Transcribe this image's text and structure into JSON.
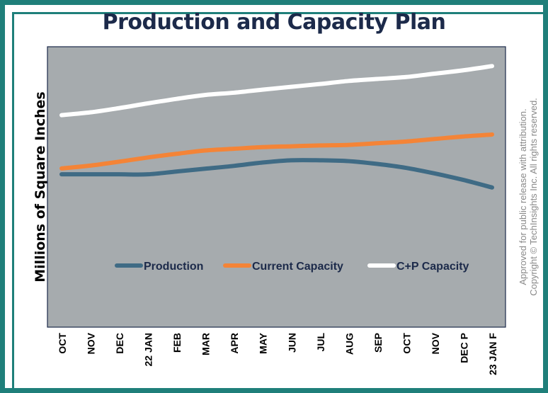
{
  "chart_data": {
    "type": "line",
    "title": "Production and Capacity Plan",
    "ylabel": "Millions of Square Inches",
    "xlabel": "",
    "categories": [
      "OCT",
      "NOV",
      "DEC",
      "22 JAN",
      "FEB",
      "MAR",
      "APR",
      "MAY",
      "JUN",
      "JUL",
      "AUG",
      "SEP",
      "OCT",
      "NOV",
      "DEC P",
      "23 JAN F"
    ],
    "ylim": [
      0,
      100
    ],
    "grid": false,
    "legend": "center",
    "series": [
      {
        "name": "Production",
        "color": "#3f6b85",
        "values": [
          54.5,
          54.5,
          54.5,
          54.5,
          55.5,
          56.5,
          57.5,
          58.7,
          59.5,
          59.5,
          59.2,
          58.2,
          56.8,
          54.8,
          52.5,
          49.8
        ]
      },
      {
        "name": "Current Capacity",
        "color": "#f48437",
        "values": [
          56.6,
          57.6,
          59.0,
          60.5,
          61.8,
          63.0,
          63.6,
          64.2,
          64.5,
          64.8,
          65.0,
          65.6,
          66.2,
          67.1,
          68.0,
          68.7
        ]
      },
      {
        "name": "C+P Capacity",
        "color": "#ffffff",
        "values": [
          75.6,
          76.6,
          78.1,
          79.8,
          81.4,
          82.8,
          83.6,
          84.7,
          85.7,
          86.7,
          87.8,
          88.5,
          89.2,
          90.4,
          91.6,
          93.1
        ]
      }
    ]
  },
  "copyright": {
    "line1": "Approved for public release with attribution.",
    "line2": "Copyright © TechInsights Inc. All rights reserved."
  }
}
